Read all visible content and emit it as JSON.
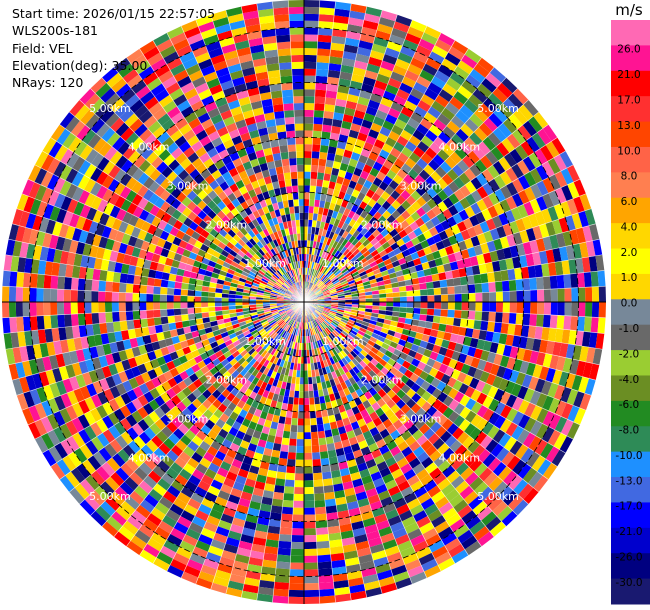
{
  "header": {
    "start_time": "Start time: 2026/01/15 22:57:05",
    "station": "WLS200s-181",
    "field": "Field: VEL",
    "elevation": "Elevation(deg): 35.00",
    "nrays": "NRays: 120"
  },
  "colorbar": {
    "unit": "m/s",
    "labels": [
      "26.0",
      "21.0",
      "17.0",
      "13.0",
      "10.0",
      "8.0",
      "6.0",
      "4.0",
      "2.0",
      "1.0",
      "0.0",
      "-1.0",
      "-2.0",
      "-4.0",
      "-6.0",
      "-8.0",
      "-10.0",
      "-13.0",
      "-17.0",
      "-21.0",
      "-26.0",
      "-30.0"
    ],
    "colors": [
      "#ff69b4",
      "#ff1493",
      "#ff0000",
      "#ff3030",
      "#ff4500",
      "#ff6347",
      "#ff7f50",
      "#ffa500",
      "#ffd700",
      "#ffff00",
      "#ffd700",
      "#778899",
      "#696969",
      "#9acd32",
      "#6b8e23",
      "#228b22",
      "#2e8b57",
      "#1e90ff",
      "#4169e1",
      "#0000ff",
      "#0000cd",
      "#000080",
      "#191970"
    ]
  },
  "chart_data": {
    "type": "heatmap",
    "field": "VEL",
    "unit": "m/s",
    "nrays": 120,
    "elevation_deg": 35.0,
    "range_ring_labels": [
      "1.00km",
      "2.00km",
      "3.00km",
      "4.00km",
      "5.00km"
    ],
    "range_rings_km": [
      1,
      2,
      3,
      4,
      5
    ],
    "max_range_km": 5.5,
    "value_range": [
      -30,
      26
    ],
    "field_pattern": "noise-dominated velocity field; color classes vary randomly from gate to gate across all rays"
  }
}
